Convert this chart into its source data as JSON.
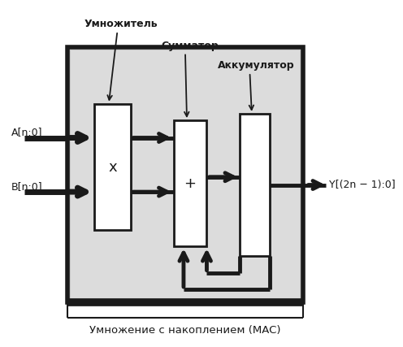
{
  "title": "Умножение с накоплением (MAC)",
  "label_multiplier": "Умножитель",
  "label_adder": "Сумматор",
  "label_accumulator": "Аккумулятор",
  "label_A": "A[n:0]",
  "label_B": "B[n:0]",
  "label_Y": "Y[(2n − 1):0]",
  "bg_outer": "#c8c8c8",
  "bg_inner": "#dcdcdc",
  "block_fill": "#ffffff",
  "block_edge": "#1a1a1a",
  "arrow_color": "#1a1a1a",
  "text_color": "#1a1a1a",
  "fig_bg": "#ffffff",
  "bus_lw": 5.0,
  "wire_lw": 3.5
}
